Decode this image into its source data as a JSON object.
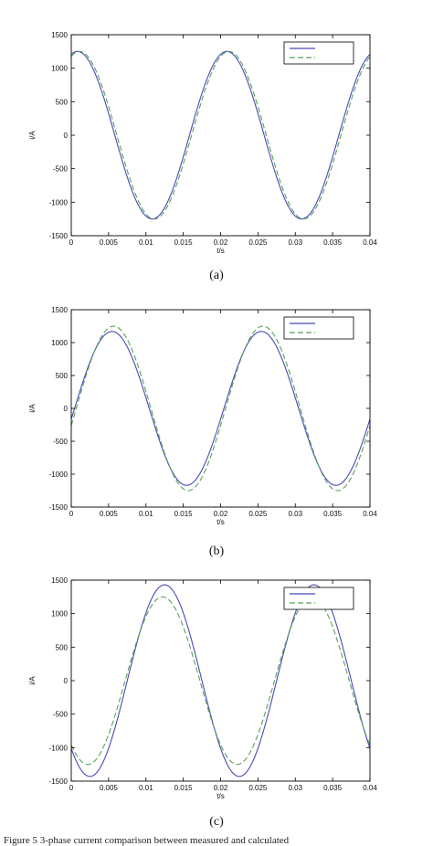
{
  "caption": "Figure 5   3-phase current comparison between measured and calculated",
  "colors": {
    "measured": "#4a4ab8",
    "calculated": "#5aa05a",
    "axis": "#000000"
  },
  "chart_data": [
    {
      "type": "line",
      "panel_label": "(a)",
      "xlabel": "t/s",
      "ylabel": "i/A",
      "xlim": [
        0,
        0.04
      ],
      "ylim": [
        -1500,
        1500
      ],
      "x_ticks": [
        "0",
        "0.005",
        "0.01",
        "0.015",
        "0.02",
        "0.025",
        "0.03",
        "0.035",
        "0.04"
      ],
      "y_ticks": [
        "1500",
        "1000",
        "500",
        "0",
        "-500",
        "-1000",
        "-1500"
      ],
      "legend_position": "top-right",
      "series": [
        {
          "style": "solid",
          "color": "#4a4ab8",
          "amplitude": 1250,
          "phase_deg": 75,
          "frequency_hz": 50
        },
        {
          "style": "dashed",
          "color": "#5aa05a",
          "amplitude": 1250,
          "phase_deg": 70,
          "frequency_hz": 50
        }
      ]
    },
    {
      "type": "line",
      "panel_label": "(b)",
      "xlabel": "t/s",
      "ylabel": "i/A",
      "xlim": [
        0,
        0.04
      ],
      "ylim": [
        -1500,
        1500
      ],
      "x_ticks": [
        "0",
        "0.005",
        "0.01",
        "0.015",
        "0.02",
        "0.025",
        "0.03",
        "0.035",
        "0.04"
      ],
      "y_ticks": [
        "1500",
        "1000",
        "500",
        "0",
        "-500",
        "-1000",
        "-1500"
      ],
      "legend_position": "top-right",
      "series": [
        {
          "style": "solid",
          "color": "#4a4ab8",
          "amplitude": 1170,
          "phase_deg": -8,
          "frequency_hz": 50
        },
        {
          "style": "dashed",
          "color": "#5aa05a",
          "amplitude": 1250,
          "phase_deg": -12,
          "frequency_hz": 50
        }
      ]
    },
    {
      "type": "line",
      "panel_label": "(c)",
      "xlabel": "t/s",
      "ylabel": "i/A",
      "xlim": [
        0,
        0.04
      ],
      "ylim": [
        -1500,
        1500
      ],
      "x_ticks": [
        "0",
        "0.005",
        "0.01",
        "0.015",
        "0.02",
        "0.025",
        "0.03",
        "0.035",
        "0.04"
      ],
      "y_ticks": [
        "1500",
        "1000",
        "500",
        "0",
        "-500",
        "-1000",
        "-1500"
      ],
      "legend_position": "top-right",
      "series": [
        {
          "style": "solid",
          "color": "#4a4ab8",
          "amplitude": 1430,
          "phase_deg": -135,
          "frequency_hz": 50
        },
        {
          "style": "dashed",
          "color": "#5aa05a",
          "amplitude": 1250,
          "phase_deg": -130,
          "frequency_hz": 50
        }
      ]
    }
  ]
}
